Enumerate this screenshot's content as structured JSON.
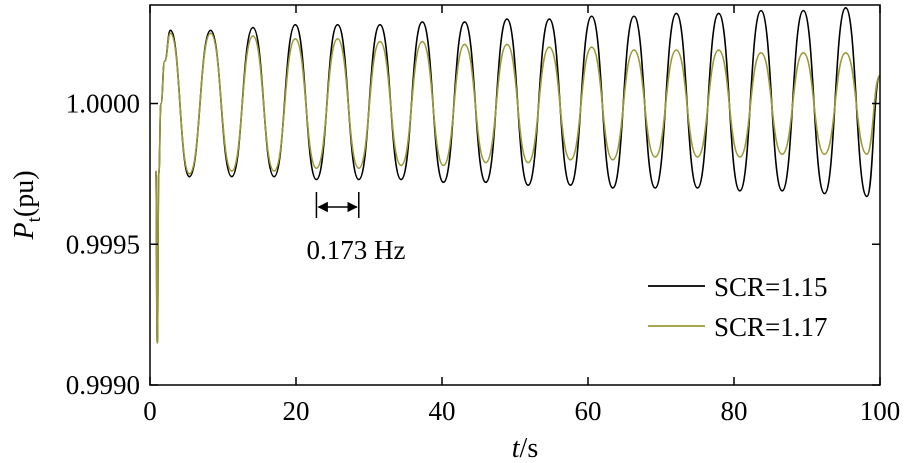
{
  "chart_data": {
    "type": "line",
    "title": "",
    "xlabel": {
      "var": "t",
      "sep": "/",
      "unit": "s"
    },
    "ylabel": {
      "var": "P",
      "sub": "t",
      "unit": "(pu)"
    },
    "xlim": [
      0,
      100
    ],
    "ylim": [
      0.999,
      1.00035
    ],
    "xticks": [
      0,
      20,
      40,
      60,
      80,
      100
    ],
    "xtick_labels": [
      "0",
      "20",
      "40",
      "60",
      "80",
      "100"
    ],
    "yticks": [
      0.999,
      0.9995,
      1.0
    ],
    "ytick_labels": [
      "0.9990",
      "0.9995",
      "1.0000"
    ],
    "grid": false,
    "legend_position": "bottom-right",
    "annotation": {
      "text": "0.173 Hz",
      "x_from": 22.8,
      "x_to": 28.6
    },
    "series": [
      {
        "name": "SCR=1.15",
        "color": "#000000",
        "x": [
          0.8,
          1.0,
          1.2,
          1.5,
          2.0,
          2.8,
          5.4,
          8.3,
          11.2,
          14.1,
          17.0,
          19.9,
          22.8,
          25.7,
          28.6,
          31.5,
          34.4,
          37.3,
          40.2,
          43.1,
          46.0,
          48.9,
          51.8,
          54.7,
          57.6,
          60.5,
          63.4,
          66.3,
          69.2,
          72.1,
          75.0,
          77.9,
          80.8,
          83.7,
          86.6,
          89.5,
          92.4,
          95.3,
          98.2,
          100.0
        ],
        "y": [
          0.99976,
          0.99915,
          0.99975,
          1.0,
          1.00015,
          1.00026,
          0.99974,
          1.00026,
          0.99974,
          1.00027,
          0.99974,
          1.00028,
          0.99973,
          1.00028,
          0.99973,
          1.00028,
          0.99973,
          1.00029,
          0.99972,
          1.00029,
          0.99972,
          1.0003,
          0.99971,
          1.0003,
          0.99971,
          1.00031,
          0.9997,
          1.00031,
          0.9997,
          1.00032,
          0.9997,
          1.00032,
          0.99969,
          1.00033,
          0.99969,
          1.00033,
          0.99968,
          1.00034,
          0.99967,
          1.0001
        ]
      },
      {
        "name": "SCR=1.17",
        "color": "#999933",
        "x": [
          0.8,
          1.0,
          1.2,
          1.5,
          2.0,
          2.8,
          5.4,
          8.3,
          11.2,
          14.1,
          17.0,
          19.9,
          22.8,
          25.7,
          28.6,
          31.5,
          34.4,
          37.3,
          40.2,
          43.1,
          46.0,
          48.9,
          51.8,
          54.7,
          57.6,
          60.5,
          63.4,
          66.3,
          69.2,
          72.1,
          75.0,
          77.9,
          80.8,
          83.7,
          86.6,
          89.5,
          92.4,
          95.3,
          98.2,
          100.0
        ],
        "y": [
          0.99976,
          0.99915,
          0.99975,
          1.0,
          1.00015,
          1.00025,
          0.99975,
          1.00025,
          0.99976,
          1.00024,
          0.99976,
          1.00023,
          0.99977,
          1.00023,
          0.99977,
          1.00022,
          0.99978,
          1.00022,
          0.99978,
          1.00021,
          0.99979,
          1.00021,
          0.99979,
          1.0002,
          0.9998,
          1.0002,
          0.9998,
          1.00019,
          0.99981,
          1.00019,
          0.99981,
          1.00019,
          0.99981,
          1.00018,
          0.99982,
          1.00018,
          0.99982,
          1.00018,
          0.99982,
          1.0001
        ]
      }
    ]
  }
}
